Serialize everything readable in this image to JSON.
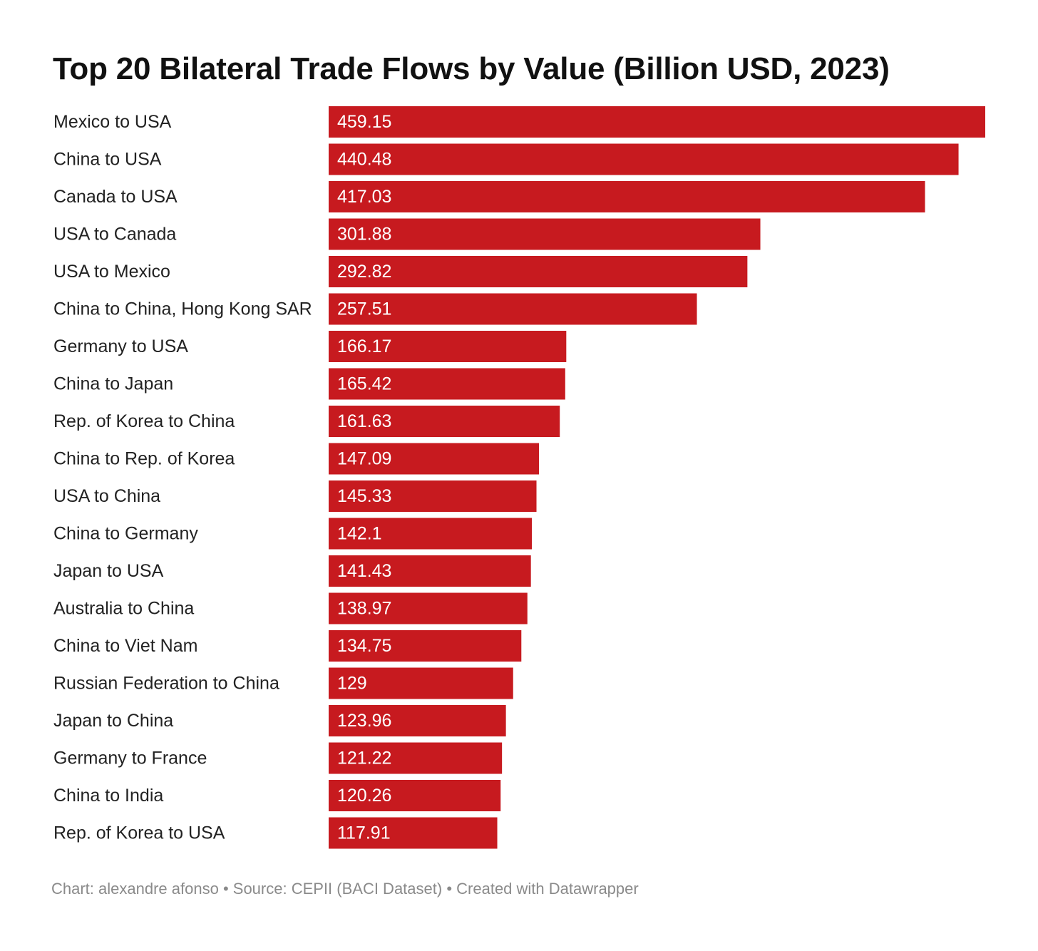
{
  "title": "Top 20 Bilateral Trade Flows by Value (Billion USD, 2023)",
  "footer": {
    "credit": "Chart: alexandre afonso",
    "separator": " • ",
    "source": "Source: CEPII (BACI Dataset)",
    "tool": "Created with Datawrapper"
  },
  "colors": {
    "bar": "#c71a1f",
    "bar_label": "#ffffff",
    "category_label": "#222222"
  },
  "chart_data": {
    "type": "bar",
    "orientation": "horizontal",
    "title": "Top 20 Bilateral Trade Flows by Value (Billion USD, 2023)",
    "xlim": [
      0,
      459.15
    ],
    "grid": false,
    "legend": "none",
    "categories": [
      "Mexico to USA",
      "China to USA",
      "Canada to USA",
      "USA to Canada",
      "USA to Mexico",
      "China to China, Hong Kong SAR",
      "Germany to USA",
      "China to Japan",
      "Rep. of Korea to China",
      "China to Rep. of Korea",
      "USA to China",
      "China to Germany",
      "Japan to USA",
      "Australia to China",
      "China to Viet Nam",
      "Russian Federation to China",
      "Japan to China",
      "Germany to France",
      "China to India",
      "Rep. of Korea to USA"
    ],
    "values": [
      459.15,
      440.48,
      417.03,
      301.88,
      292.82,
      257.51,
      166.17,
      165.42,
      161.63,
      147.09,
      145.33,
      142.1,
      141.43,
      138.97,
      134.75,
      129,
      123.96,
      121.22,
      120.26,
      117.91
    ],
    "value_labels": [
      "459.15",
      "440.48",
      "417.03",
      "301.88",
      "292.82",
      "257.51",
      "166.17",
      "165.42",
      "161.63",
      "147.09",
      "145.33",
      "142.1",
      "141.43",
      "138.97",
      "134.75",
      "129",
      "123.96",
      "121.22",
      "120.26",
      "117.91"
    ]
  }
}
